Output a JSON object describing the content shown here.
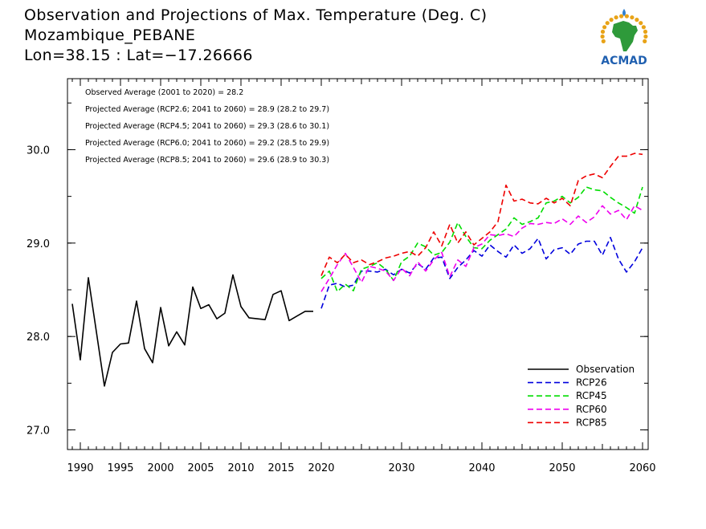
{
  "header": {
    "title_line1": "Observation and Projections of Max. Temperature (Deg. C)",
    "title_line2": "Mozambique_PEBANE",
    "title_line3": "Lon=38.15 : Lat=−17.26666"
  },
  "logo": {
    "text": "ACMAD",
    "colors": {
      "africa": "#2e9a3a",
      "ring": "#e8a317",
      "text": "#2060b0",
      "drop": "#2e7fd0"
    }
  },
  "chart_data": {
    "type": "line",
    "title": "Observation and Projections of Max. Temperature (Deg. C)",
    "xlabel": "",
    "ylabel": "",
    "xlim": [
      1989,
      2060
    ],
    "ylim": [
      26.85,
      30.7
    ],
    "x_ticks": [
      1990,
      1995,
      2000,
      2005,
      2010,
      2015,
      2020,
      2030,
      2040,
      2050,
      2060
    ],
    "y_ticks": [
      27.0,
      28.0,
      29.0,
      30.0
    ],
    "y_tick_labels": [
      "27.0",
      "28.0",
      "29.0",
      "30.0"
    ],
    "annotations": [
      "Observed Average (2001 to 2020) = 28.2",
      "Projected Average (RCP2.6; 2041 to 2060) = 28.9 (28.2 to 29.7)",
      "Projected Average (RCP4.5; 2041 to 2060) = 29.3 (28.6 to 30.1)",
      "Projected Average (RCP6.0; 2041 to 2060) = 29.2 (28.5 to 29.9)",
      "Projected Average (RCP8.5; 2041 to 2060) = 29.6 (28.9 to 30.3)"
    ],
    "legend_position": "bottom-right",
    "series": [
      {
        "name": "Observation",
        "color": "#000000",
        "dashed": false,
        "x": [
          1989,
          1990,
          1991,
          1992,
          1993,
          1994,
          1995,
          1996,
          1997,
          1998,
          1999,
          2000,
          2001,
          2002,
          2003,
          2004,
          2005,
          2006,
          2007,
          2008,
          2009,
          2010,
          2011,
          2012,
          2013,
          2014,
          2015,
          2016,
          2017,
          2018,
          2019
        ],
        "values": [
          28.35,
          27.75,
          28.63,
          28.05,
          27.47,
          27.83,
          27.92,
          27.93,
          28.38,
          27.87,
          27.72,
          28.31,
          27.9,
          28.05,
          27.91,
          28.53,
          28.3,
          28.34,
          28.19,
          28.25,
          28.66,
          28.32,
          28.2,
          28.19,
          28.18,
          28.45,
          28.49,
          28.17,
          28.22,
          28.27,
          28.27
        ]
      },
      {
        "name": "RCP26",
        "color": "#0000dd",
        "dashed": true,
        "x": [
          2020,
          2021,
          2022,
          2023,
          2024,
          2025,
          2026,
          2027,
          2028,
          2029,
          2030,
          2031,
          2032,
          2033,
          2034,
          2035,
          2036,
          2037,
          2038,
          2039,
          2040,
          2041,
          2042,
          2043,
          2044,
          2045,
          2046,
          2047,
          2048,
          2049,
          2050,
          2051,
          2052,
          2053,
          2054,
          2055,
          2056,
          2057,
          2058,
          2059,
          2060
        ],
        "values": [
          28.3,
          28.55,
          28.57,
          28.53,
          28.55,
          28.7,
          28.7,
          28.69,
          28.72,
          28.66,
          28.72,
          28.68,
          28.78,
          28.72,
          28.84,
          28.85,
          28.62,
          28.74,
          28.82,
          28.92,
          28.86,
          28.98,
          28.91,
          28.85,
          28.98,
          28.89,
          28.94,
          29.05,
          28.83,
          28.93,
          28.95,
          28.88,
          28.99,
          29.02,
          29.02,
          28.87,
          29.06,
          28.83,
          28.69,
          28.8,
          28.95
        ]
      },
      {
        "name": "RCP45",
        "color": "#00dd00",
        "dashed": true,
        "x": [
          2020,
          2021,
          2022,
          2023,
          2024,
          2025,
          2026,
          2027,
          2028,
          2029,
          2030,
          2031,
          2032,
          2033,
          2034,
          2035,
          2036,
          2037,
          2038,
          2039,
          2040,
          2041,
          2042,
          2043,
          2044,
          2045,
          2046,
          2047,
          2048,
          2049,
          2050,
          2051,
          2052,
          2053,
          2054,
          2055,
          2056,
          2057,
          2058,
          2059,
          2060
        ],
        "values": [
          28.62,
          28.7,
          28.48,
          28.56,
          28.49,
          28.72,
          28.75,
          28.79,
          28.72,
          28.6,
          28.8,
          28.86,
          29.0,
          28.96,
          28.87,
          28.9,
          29.01,
          29.22,
          29.07,
          28.95,
          28.94,
          29.03,
          29.09,
          29.15,
          29.27,
          29.2,
          29.23,
          29.27,
          29.43,
          29.45,
          29.5,
          29.43,
          29.49,
          29.6,
          29.57,
          29.56,
          29.49,
          29.43,
          29.38,
          29.32,
          29.6
        ]
      },
      {
        "name": "RCP60",
        "color": "#ee00ee",
        "dashed": true,
        "x": [
          2020,
          2021,
          2022,
          2023,
          2024,
          2025,
          2026,
          2027,
          2028,
          2029,
          2030,
          2031,
          2032,
          2033,
          2034,
          2035,
          2036,
          2037,
          2038,
          2039,
          2040,
          2041,
          2042,
          2043,
          2044,
          2045,
          2046,
          2047,
          2048,
          2049,
          2050,
          2051,
          2052,
          2053,
          2054,
          2055,
          2056,
          2057,
          2058,
          2059,
          2060
        ],
        "values": [
          28.48,
          28.62,
          28.77,
          28.89,
          28.74,
          28.58,
          28.75,
          28.73,
          28.7,
          28.6,
          28.73,
          28.65,
          28.8,
          28.7,
          28.82,
          28.9,
          28.64,
          28.82,
          28.75,
          28.95,
          28.99,
          29.09,
          29.08,
          29.1,
          29.07,
          29.16,
          29.21,
          29.2,
          29.22,
          29.21,
          29.26,
          29.2,
          29.29,
          29.22,
          29.28,
          29.4,
          29.31,
          29.35,
          29.25,
          29.4,
          29.35
        ]
      },
      {
        "name": "RCP85",
        "color": "#ee0000",
        "dashed": true,
        "x": [
          2020,
          2021,
          2022,
          2023,
          2024,
          2025,
          2026,
          2027,
          2028,
          2029,
          2030,
          2031,
          2032,
          2033,
          2034,
          2035,
          2036,
          2037,
          2038,
          2039,
          2040,
          2041,
          2042,
          2043,
          2044,
          2045,
          2046,
          2047,
          2048,
          2049,
          2050,
          2051,
          2052,
          2053,
          2054,
          2055,
          2056,
          2057,
          2058,
          2059,
          2060
        ],
        "values": [
          28.65,
          28.85,
          28.79,
          28.88,
          28.79,
          28.82,
          28.77,
          28.8,
          28.84,
          28.86,
          28.89,
          28.91,
          28.86,
          28.95,
          29.12,
          28.97,
          29.2,
          29.0,
          29.12,
          28.98,
          29.05,
          29.12,
          29.23,
          29.62,
          29.45,
          29.47,
          29.43,
          29.42,
          29.48,
          29.43,
          29.48,
          29.4,
          29.67,
          29.72,
          29.74,
          29.7,
          29.82,
          29.93,
          29.93,
          29.96,
          29.95
        ]
      }
    ]
  }
}
